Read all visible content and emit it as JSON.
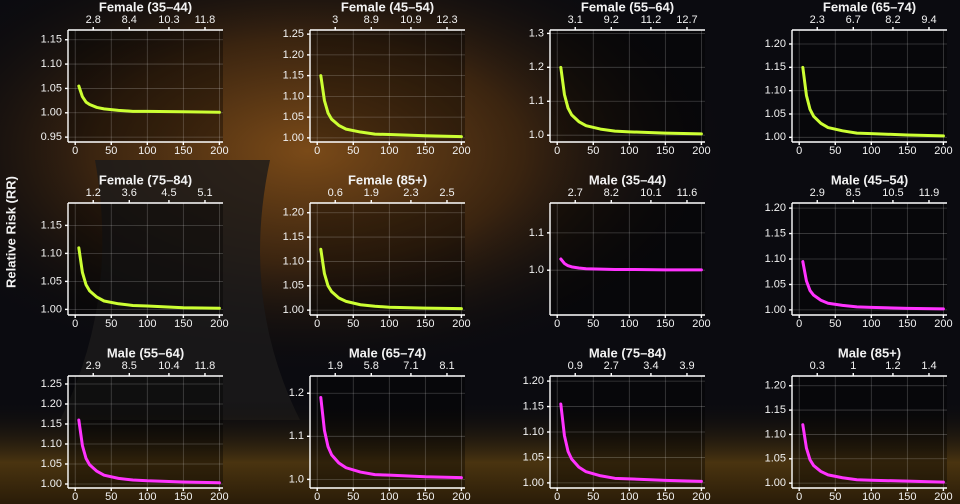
{
  "ylabel": "Relative Risk (RR)",
  "chart_data": [
    {
      "type": "line",
      "title": "Female (35–44)",
      "x": [
        5,
        10,
        15,
        20,
        30,
        40,
        60,
        80,
        100,
        150,
        200
      ],
      "series": [
        {
          "color": "#ccff33",
          "values": [
            1.055,
            1.033,
            1.022,
            1.017,
            1.011,
            1.008,
            1.005,
            1.003,
            1.003,
            1.002,
            1.001
          ]
        }
      ],
      "xlim": [
        -10,
        205
      ],
      "xticks": [
        0,
        50,
        100,
        150,
        200
      ],
      "x2ticks": [
        {
          "value": 25,
          "label": "2.8"
        },
        {
          "value": 75,
          "label": "8.4"
        },
        {
          "value": 130,
          "label": "10.3"
        },
        {
          "value": 180,
          "label": "11.8"
        }
      ],
      "ylim": [
        0.94,
        1.17
      ],
      "yticks": [
        0.95,
        {
          "value": 1,
          "label": "1.00"
        },
        1.05,
        {
          "value": 1.1,
          "label": "1.10"
        },
        1.15
      ],
      "grid": true
    },
    {
      "type": "line",
      "title": "Female (45–54)",
      "x": [
        5,
        10,
        15,
        20,
        30,
        40,
        60,
        80,
        100,
        150,
        200
      ],
      "series": [
        {
          "color": "#ccff33",
          "values": [
            1.15,
            1.09,
            1.06,
            1.045,
            1.03,
            1.021,
            1.014,
            1.009,
            1.008,
            1.005,
            1.003
          ]
        }
      ],
      "xlim": [
        -10,
        205
      ],
      "xticks": [
        0,
        50,
        100,
        150,
        200
      ],
      "x2ticks": [
        {
          "value": 25,
          "label": "3"
        },
        {
          "value": 75,
          "label": "8.9"
        },
        {
          "value": 130,
          "label": "10.9"
        },
        {
          "value": 180,
          "label": "12.3"
        }
      ],
      "ylim": [
        0.99,
        1.26
      ],
      "yticks": [
        {
          "value": 1,
          "label": "1.00"
        },
        1.05,
        {
          "value": 1.1,
          "label": "1.10"
        },
        1.15,
        {
          "value": 1.2,
          "label": "1.20"
        },
        1.25
      ],
      "grid": true
    },
    {
      "type": "line",
      "title": "Female (55–64)",
      "x": [
        5,
        10,
        15,
        20,
        30,
        40,
        60,
        80,
        100,
        150,
        200
      ],
      "series": [
        {
          "color": "#ccff33",
          "values": [
            1.2,
            1.12,
            1.08,
            1.06,
            1.04,
            1.028,
            1.018,
            1.012,
            1.01,
            1.006,
            1.004
          ]
        }
      ],
      "xlim": [
        -10,
        205
      ],
      "xticks": [
        0,
        50,
        100,
        150,
        200
      ],
      "x2ticks": [
        {
          "value": 25,
          "label": "3.1"
        },
        {
          "value": 75,
          "label": "9.2"
        },
        {
          "value": 130,
          "label": "11.2"
        },
        {
          "value": 180,
          "label": "12.7"
        }
      ],
      "ylim": [
        0.98,
        1.31
      ],
      "yticks": [
        {
          "value": 1,
          "label": "1.0"
        },
        1.1,
        1.2,
        1.3
      ],
      "grid": true
    },
    {
      "type": "line",
      "title": "Female (65–74)",
      "x": [
        5,
        10,
        15,
        20,
        30,
        40,
        60,
        80,
        100,
        150,
        200
      ],
      "series": [
        {
          "color": "#ccff33",
          "values": [
            1.15,
            1.09,
            1.06,
            1.045,
            1.03,
            1.021,
            1.014,
            1.009,
            1.008,
            1.005,
            1.003
          ]
        }
      ],
      "xlim": [
        -10,
        205
      ],
      "xticks": [
        0,
        50,
        100,
        150,
        200
      ],
      "x2ticks": [
        {
          "value": 25,
          "label": "2.3"
        },
        {
          "value": 75,
          "label": "6.7"
        },
        {
          "value": 130,
          "label": "8.2"
        },
        {
          "value": 180,
          "label": "9.4"
        }
      ],
      "ylim": [
        0.99,
        1.23
      ],
      "yticks": [
        {
          "value": 1,
          "label": "1.00"
        },
        1.05,
        {
          "value": 1.1,
          "label": "1.10"
        },
        1.15,
        {
          "value": 1.2,
          "label": "1.20"
        }
      ],
      "grid": true
    },
    {
      "type": "line",
      "title": "Female (75–84)",
      "x": [
        5,
        10,
        15,
        20,
        30,
        40,
        60,
        80,
        100,
        150,
        200
      ],
      "series": [
        {
          "color": "#ccff33",
          "values": [
            1.11,
            1.066,
            1.044,
            1.033,
            1.022,
            1.015,
            1.01,
            1.007,
            1.006,
            1.003,
            1.002
          ]
        }
      ],
      "xlim": [
        -10,
        205
      ],
      "xticks": [
        0,
        50,
        100,
        150,
        200
      ],
      "x2ticks": [
        {
          "value": 25,
          "label": "1.2"
        },
        {
          "value": 75,
          "label": "3.6"
        },
        {
          "value": 130,
          "label": "4.5"
        },
        {
          "value": 180,
          "label": "5.1"
        }
      ],
      "ylim": [
        0.99,
        1.19
      ],
      "yticks": [
        {
          "value": 1,
          "label": "1.00"
        },
        1.05,
        {
          "value": 1.1,
          "label": "1.10"
        },
        1.15
      ],
      "grid": true
    },
    {
      "type": "line",
      "title": "Female (85+)",
      "x": [
        5,
        10,
        15,
        20,
        30,
        40,
        60,
        80,
        100,
        150,
        200
      ],
      "series": [
        {
          "color": "#ccff33",
          "values": [
            1.125,
            1.075,
            1.05,
            1.038,
            1.025,
            1.018,
            1.011,
            1.008,
            1.006,
            1.004,
            1.003
          ]
        }
      ],
      "xlim": [
        -10,
        205
      ],
      "xticks": [
        0,
        50,
        100,
        150,
        200
      ],
      "x2ticks": [
        {
          "value": 25,
          "label": "0.6"
        },
        {
          "value": 75,
          "label": "1.9"
        },
        {
          "value": 130,
          "label": "2.3"
        },
        {
          "value": 180,
          "label": "2.5"
        }
      ],
      "ylim": [
        0.99,
        1.22
      ],
      "yticks": [
        {
          "value": 1,
          "label": "1.00"
        },
        1.05,
        {
          "value": 1.1,
          "label": "1.10"
        },
        1.15,
        {
          "value": 1.2,
          "label": "1.20"
        }
      ],
      "grid": true
    },
    {
      "type": "line",
      "title": "Male (35–44)",
      "x": [
        5,
        10,
        15,
        20,
        30,
        40,
        60,
        80,
        100,
        150,
        200
      ],
      "series": [
        {
          "color": "#ff33ff",
          "values": [
            1.03,
            1.018,
            1.012,
            1.009,
            1.006,
            1.004,
            1.003,
            1.002,
            1.002,
            1.001,
            1.001
          ]
        }
      ],
      "xlim": [
        -10,
        205
      ],
      "xticks": [
        0,
        50,
        100,
        150,
        200
      ],
      "x2ticks": [
        {
          "value": 25,
          "label": "2.7"
        },
        {
          "value": 75,
          "label": "8.2"
        },
        {
          "value": 130,
          "label": "10.1"
        },
        {
          "value": 180,
          "label": "11.6"
        }
      ],
      "ylim": [
        0.88,
        1.18
      ],
      "yticks": [
        {
          "value": 1,
          "label": "1.0"
        },
        1.1
      ],
      "grid": true
    },
    {
      "type": "line",
      "title": "Male (45–54)",
      "x": [
        5,
        10,
        15,
        20,
        30,
        40,
        60,
        80,
        100,
        150,
        200
      ],
      "series": [
        {
          "color": "#ff33ff",
          "values": [
            1.095,
            1.057,
            1.038,
            1.029,
            1.019,
            1.013,
            1.009,
            1.006,
            1.005,
            1.003,
            1.002
          ]
        }
      ],
      "xlim": [
        -10,
        205
      ],
      "xticks": [
        0,
        50,
        100,
        150,
        200
      ],
      "x2ticks": [
        {
          "value": 25,
          "label": "2.9"
        },
        {
          "value": 75,
          "label": "8.5"
        },
        {
          "value": 130,
          "label": "10.5"
        },
        {
          "value": 180,
          "label": "11.9"
        }
      ],
      "ylim": [
        0.99,
        1.21
      ],
      "yticks": [
        {
          "value": 1,
          "label": "1.00"
        },
        1.05,
        {
          "value": 1.1,
          "label": "1.10"
        },
        1.15,
        {
          "value": 1.2,
          "label": "1.20"
        }
      ],
      "grid": true
    },
    {
      "type": "line",
      "title": "Male (55–64)",
      "x": [
        5,
        10,
        15,
        20,
        30,
        40,
        60,
        80,
        100,
        150,
        200
      ],
      "series": [
        {
          "color": "#ff33ff",
          "values": [
            1.16,
            1.096,
            1.064,
            1.048,
            1.032,
            1.022,
            1.014,
            1.01,
            1.008,
            1.005,
            1.003
          ]
        }
      ],
      "xlim": [
        -10,
        205
      ],
      "xticks": [
        0,
        50,
        100,
        150,
        200
      ],
      "x2ticks": [
        {
          "value": 25,
          "label": "2.9"
        },
        {
          "value": 75,
          "label": "8.5"
        },
        {
          "value": 130,
          "label": "10.4"
        },
        {
          "value": 180,
          "label": "11.8"
        }
      ],
      "ylim": [
        0.99,
        1.27
      ],
      "yticks": [
        {
          "value": 1,
          "label": "1.00"
        },
        1.05,
        {
          "value": 1.1,
          "label": "1.10"
        },
        1.15,
        {
          "value": 1.2,
          "label": "1.20"
        },
        1.25
      ],
      "grid": true
    },
    {
      "type": "line",
      "title": "Male (65–74)",
      "x": [
        5,
        10,
        15,
        20,
        30,
        40,
        60,
        80,
        100,
        150,
        200
      ],
      "series": [
        {
          "color": "#ff33ff",
          "values": [
            1.19,
            1.114,
            1.076,
            1.057,
            1.038,
            1.027,
            1.017,
            1.011,
            1.01,
            1.006,
            1.004
          ]
        }
      ],
      "xlim": [
        -10,
        205
      ],
      "xticks": [
        0,
        50,
        100,
        150,
        200
      ],
      "x2ticks": [
        {
          "value": 25,
          "label": "1.9"
        },
        {
          "value": 75,
          "label": "5.8"
        },
        {
          "value": 130,
          "label": "7.1"
        },
        {
          "value": 180,
          "label": "8.1"
        }
      ],
      "ylim": [
        0.98,
        1.24
      ],
      "yticks": [
        {
          "value": 1,
          "label": "1.0"
        },
        1.1,
        1.2
      ],
      "grid": true
    },
    {
      "type": "line",
      "title": "Male (75–84)",
      "x": [
        5,
        10,
        15,
        20,
        30,
        40,
        60,
        80,
        100,
        150,
        200
      ],
      "series": [
        {
          "color": "#ff33ff",
          "values": [
            1.155,
            1.093,
            1.062,
            1.047,
            1.031,
            1.022,
            1.014,
            1.009,
            1.008,
            1.005,
            1.003
          ]
        }
      ],
      "xlim": [
        -10,
        205
      ],
      "xticks": [
        0,
        50,
        100,
        150,
        200
      ],
      "x2ticks": [
        {
          "value": 25,
          "label": "0.9"
        },
        {
          "value": 75,
          "label": "2.7"
        },
        {
          "value": 130,
          "label": "3.4"
        },
        {
          "value": 180,
          "label": "3.9"
        }
      ],
      "ylim": [
        0.99,
        1.21
      ],
      "yticks": [
        {
          "value": 1,
          "label": "1.00"
        },
        1.05,
        {
          "value": 1.1,
          "label": "1.10"
        },
        1.15,
        {
          "value": 1.2,
          "label": "1.20"
        }
      ],
      "grid": true
    },
    {
      "type": "line",
      "title": "Male (85+)",
      "x": [
        5,
        10,
        15,
        20,
        30,
        40,
        60,
        80,
        100,
        150,
        200
      ],
      "series": [
        {
          "color": "#ff33ff",
          "values": [
            1.12,
            1.072,
            1.048,
            1.036,
            1.024,
            1.017,
            1.011,
            1.007,
            1.006,
            1.004,
            1.002
          ]
        }
      ],
      "xlim": [
        -10,
        205
      ],
      "xticks": [
        0,
        50,
        100,
        150,
        200
      ],
      "x2ticks": [
        {
          "value": 25,
          "label": "0.3"
        },
        {
          "value": 75,
          "label": "1"
        },
        {
          "value": 130,
          "label": "1.2"
        },
        {
          "value": 180,
          "label": "1.4"
        }
      ],
      "ylim": [
        0.99,
        1.22
      ],
      "yticks": [
        {
          "value": 1,
          "label": "1.00"
        },
        1.05,
        {
          "value": 1.1,
          "label": "1.10"
        },
        1.15,
        {
          "value": 1.2,
          "label": "1.20"
        }
      ],
      "grid": true
    }
  ]
}
